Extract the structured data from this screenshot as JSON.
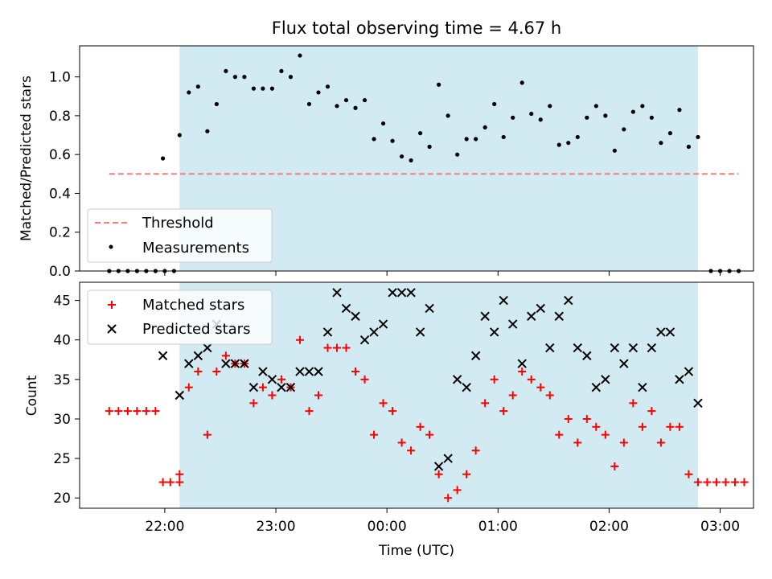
{
  "chart_data": [
    {
      "type": "scatter",
      "title": "Flux total observing time = 4.67 h",
      "ylabel": "Matched/Predicted stars",
      "xlabel": "",
      "ylim": [
        0,
        1.16
      ],
      "yticks": [
        "0.0",
        "0.2",
        "0.4",
        "0.6",
        "0.8",
        "1.0"
      ],
      "shaded_region": {
        "from": "22:08",
        "to": "02:48",
        "color": "#add8e6"
      },
      "threshold": {
        "label": "Threshold",
        "value": 0.5,
        "from": "21:30",
        "to": "03:10",
        "color": "#f08080"
      },
      "legend": {
        "placement": "lower-left",
        "entries": [
          "Threshold",
          "Measurements"
        ]
      },
      "series": [
        {
          "name": "Measurements",
          "color": "#000000",
          "marker": "dot",
          "points": [
            [
              "21:30",
              0
            ],
            [
              "21:35",
              0
            ],
            [
              "21:40",
              0
            ],
            [
              "21:45",
              0
            ],
            [
              "21:50",
              0
            ],
            [
              "21:55",
              0
            ],
            [
              "21:59",
              0.58
            ],
            [
              "22:00",
              0
            ],
            [
              "22:05",
              0
            ],
            [
              "22:08",
              0.7
            ],
            [
              "22:13",
              0.92
            ],
            [
              "22:18",
              0.95
            ],
            [
              "22:23",
              0.72
            ],
            [
              "22:28",
              0.86
            ],
            [
              "22:33",
              1.03
            ],
            [
              "22:38",
              1.0
            ],
            [
              "22:43",
              1.0
            ],
            [
              "22:48",
              0.94
            ],
            [
              "22:53",
              0.94
            ],
            [
              "22:58",
              0.94
            ],
            [
              "23:03",
              1.03
            ],
            [
              "23:08",
              1.0
            ],
            [
              "23:13",
              1.11
            ],
            [
              "23:18",
              0.86
            ],
            [
              "23:23",
              0.92
            ],
            [
              "23:28",
              0.95
            ],
            [
              "23:33",
              0.85
            ],
            [
              "23:38",
              0.88
            ],
            [
              "23:43",
              0.84
            ],
            [
              "23:48",
              0.88
            ],
            [
              "23:53",
              0.68
            ],
            [
              "23:58",
              0.76
            ],
            [
              "00:03",
              0.67
            ],
            [
              "00:08",
              0.59
            ],
            [
              "00:13",
              0.57
            ],
            [
              "00:18",
              0.71
            ],
            [
              "00:23",
              0.64
            ],
            [
              "00:28",
              0.96
            ],
            [
              "00:33",
              0.8
            ],
            [
              "00:38",
              0.6
            ],
            [
              "00:43",
              0.68
            ],
            [
              "00:48",
              0.68
            ],
            [
              "00:53",
              0.74
            ],
            [
              "00:58",
              0.86
            ],
            [
              "01:03",
              0.69
            ],
            [
              "01:08",
              0.79
            ],
            [
              "01:13",
              0.97
            ],
            [
              "01:18",
              0.81
            ],
            [
              "01:23",
              0.78
            ],
            [
              "01:28",
              0.85
            ],
            [
              "01:33",
              0.65
            ],
            [
              "01:38",
              0.66
            ],
            [
              "01:43",
              0.69
            ],
            [
              "01:48",
              0.79
            ],
            [
              "01:53",
              0.85
            ],
            [
              "01:58",
              0.8
            ],
            [
              "02:03",
              0.62
            ],
            [
              "02:08",
              0.73
            ],
            [
              "02:13",
              0.82
            ],
            [
              "02:18",
              0.85
            ],
            [
              "02:23",
              0.79
            ],
            [
              "02:28",
              0.66
            ],
            [
              "02:33",
              0.71
            ],
            [
              "02:38",
              0.83
            ],
            [
              "02:43",
              0.64
            ],
            [
              "02:48",
              0.69
            ],
            [
              "02:55",
              0
            ],
            [
              "03:00",
              0
            ],
            [
              "03:05",
              0
            ],
            [
              "03:10",
              0
            ]
          ]
        }
      ]
    },
    {
      "type": "scatter",
      "title": "",
      "xlabel": "Time (UTC)",
      "ylabel": "Count",
      "ylim": [
        18.7,
        47.3
      ],
      "yticks": [
        "20",
        "25",
        "30",
        "35",
        "40",
        "45"
      ],
      "xticks": [
        "22:00",
        "23:00",
        "00:00",
        "01:00",
        "02:00",
        "03:00"
      ],
      "shaded_region": {
        "from": "22:08",
        "to": "02:48",
        "color": "#add8e6"
      },
      "legend": {
        "placement": "top-left",
        "entries": [
          "Matched stars",
          "Predicted stars"
        ]
      },
      "series": [
        {
          "name": "Matched stars",
          "color": "#ff0000",
          "marker": "plus",
          "points": [
            [
              "21:30",
              31
            ],
            [
              "21:35",
              31
            ],
            [
              "21:40",
              31
            ],
            [
              "21:45",
              31
            ],
            [
              "21:50",
              31
            ],
            [
              "21:55",
              31
            ],
            [
              "21:59",
              22
            ],
            [
              "22:03",
              22
            ],
            [
              "22:08",
              22
            ],
            [
              "22:08",
              23
            ],
            [
              "22:13",
              34
            ],
            [
              "22:18",
              36
            ],
            [
              "22:23",
              28
            ],
            [
              "22:28",
              36
            ],
            [
              "22:33",
              38
            ],
            [
              "22:38",
              37
            ],
            [
              "22:43",
              37
            ],
            [
              "22:48",
              32
            ],
            [
              "22:53",
              34
            ],
            [
              "22:58",
              33
            ],
            [
              "23:03",
              35
            ],
            [
              "23:08",
              34
            ],
            [
              "23:13",
              40
            ],
            [
              "23:18",
              31
            ],
            [
              "23:23",
              33
            ],
            [
              "23:28",
              39
            ],
            [
              "23:33",
              39
            ],
            [
              "23:38",
              39
            ],
            [
              "23:43",
              36
            ],
            [
              "23:48",
              35
            ],
            [
              "23:53",
              28
            ],
            [
              "23:58",
              32
            ],
            [
              "00:03",
              31
            ],
            [
              "00:08",
              27
            ],
            [
              "00:13",
              26
            ],
            [
              "00:18",
              29
            ],
            [
              "00:23",
              28
            ],
            [
              "00:28",
              23
            ],
            [
              "00:33",
              20
            ],
            [
              "00:38",
              21
            ],
            [
              "00:43",
              23
            ],
            [
              "00:48",
              26
            ],
            [
              "00:53",
              32
            ],
            [
              "00:58",
              35
            ],
            [
              "01:03",
              31
            ],
            [
              "01:08",
              33
            ],
            [
              "01:13",
              36
            ],
            [
              "01:18",
              35
            ],
            [
              "01:23",
              34
            ],
            [
              "01:28",
              33
            ],
            [
              "01:33",
              28
            ],
            [
              "01:38",
              30
            ],
            [
              "01:43",
              27
            ],
            [
              "01:48",
              30
            ],
            [
              "01:53",
              29
            ],
            [
              "01:58",
              28
            ],
            [
              "02:03",
              24
            ],
            [
              "02:08",
              27
            ],
            [
              "02:13",
              32
            ],
            [
              "02:18",
              29
            ],
            [
              "02:23",
              31
            ],
            [
              "02:28",
              27
            ],
            [
              "02:33",
              29
            ],
            [
              "02:38",
              29
            ],
            [
              "02:43",
              23
            ],
            [
              "02:48",
              22
            ],
            [
              "02:53",
              22
            ],
            [
              "02:58",
              22
            ],
            [
              "03:03",
              22
            ],
            [
              "03:08",
              22
            ],
            [
              "03:13",
              22
            ]
          ]
        },
        {
          "name": "Predicted stars",
          "color": "#000000",
          "marker": "x",
          "points": [
            [
              "21:59",
              38
            ],
            [
              "22:08",
              33
            ],
            [
              "22:13",
              37
            ],
            [
              "22:18",
              38
            ],
            [
              "22:23",
              39
            ],
            [
              "22:28",
              42
            ],
            [
              "22:33",
              37
            ],
            [
              "22:38",
              37
            ],
            [
              "22:43",
              37
            ],
            [
              "22:48",
              34
            ],
            [
              "22:53",
              36
            ],
            [
              "22:58",
              35
            ],
            [
              "23:03",
              34
            ],
            [
              "23:08",
              34
            ],
            [
              "23:13",
              36
            ],
            [
              "23:18",
              36
            ],
            [
              "23:23",
              36
            ],
            [
              "23:28",
              41
            ],
            [
              "23:33",
              46
            ],
            [
              "23:38",
              44
            ],
            [
              "23:43",
              43
            ],
            [
              "23:48",
              40
            ],
            [
              "23:53",
              41
            ],
            [
              "23:58",
              42
            ],
            [
              "00:03",
              46
            ],
            [
              "00:08",
              46
            ],
            [
              "00:13",
              46
            ],
            [
              "00:18",
              41
            ],
            [
              "00:23",
              44
            ],
            [
              "00:28",
              24
            ],
            [
              "00:33",
              25
            ],
            [
              "00:38",
              35
            ],
            [
              "00:43",
              34
            ],
            [
              "00:48",
              38
            ],
            [
              "00:53",
              43
            ],
            [
              "00:58",
              41
            ],
            [
              "01:03",
              45
            ],
            [
              "01:08",
              42
            ],
            [
              "01:13",
              37
            ],
            [
              "01:18",
              43
            ],
            [
              "01:23",
              44
            ],
            [
              "01:28",
              39
            ],
            [
              "01:33",
              43
            ],
            [
              "01:38",
              45
            ],
            [
              "01:43",
              39
            ],
            [
              "01:48",
              38
            ],
            [
              "01:53",
              34
            ],
            [
              "01:58",
              35
            ],
            [
              "02:03",
              39
            ],
            [
              "02:08",
              37
            ],
            [
              "02:13",
              39
            ],
            [
              "02:18",
              34
            ],
            [
              "02:23",
              39
            ],
            [
              "02:28",
              41
            ],
            [
              "02:33",
              41
            ],
            [
              "02:38",
              35
            ],
            [
              "02:43",
              36
            ],
            [
              "02:48",
              32
            ]
          ]
        }
      ]
    }
  ]
}
